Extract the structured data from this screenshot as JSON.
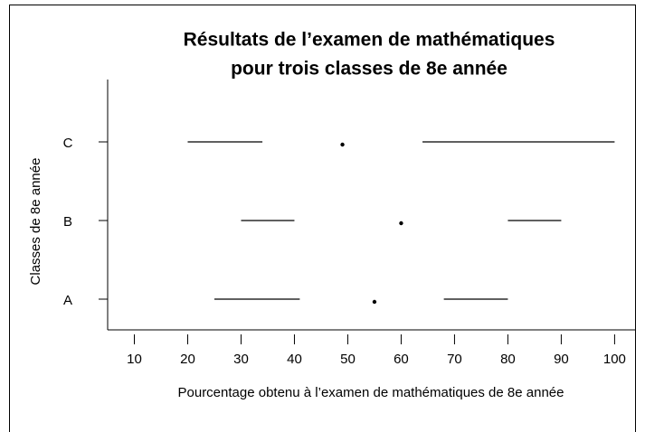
{
  "chart_data": {
    "type": "whisker",
    "title": [
      "Résultats de l’examen de mathématiques",
      "pour trois classes de 8e année"
    ],
    "xlabel": "Pourcentage obtenu à l’examen de mathématiques de 8e année",
    "ylabel": "Classes de 8e année",
    "categories": [
      "A",
      "B",
      "C"
    ],
    "min": [
      25,
      30,
      20
    ],
    "q1": [
      41,
      40,
      34
    ],
    "median": [
      55,
      60,
      49
    ],
    "q3": [
      68,
      80,
      64
    ],
    "max": [
      80,
      90,
      100
    ],
    "color": "#000000",
    "xlim": [
      5,
      104
    ],
    "xticks": [
      10,
      20,
      30,
      40,
      50,
      60,
      70,
      80,
      90,
      100
    ]
  }
}
